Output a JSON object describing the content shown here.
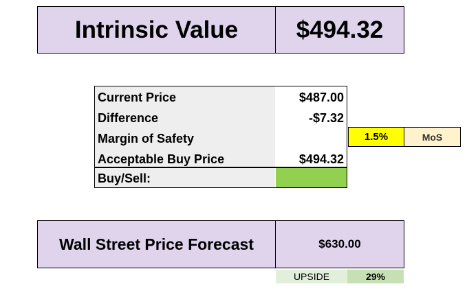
{
  "intrinsic": {
    "label": "Intrinsic Value",
    "value": "$494.32"
  },
  "table": {
    "rows": [
      {
        "label": "Current Price",
        "value": "$487.00"
      },
      {
        "label": "Difference",
        "value": "-$7.32"
      },
      {
        "label": "Margin of Safety",
        "value": ""
      },
      {
        "label": "Acceptable Buy Price",
        "value": "$494.32"
      },
      {
        "label": "Buy/Sell:",
        "value": ""
      }
    ],
    "mos_percent": "1.5%",
    "mos_tag": "MoS"
  },
  "forecast": {
    "label": "Wall Street Price Forecast",
    "value": "$630.00"
  },
  "upside": {
    "label": "UPSIDE",
    "value": "29%"
  },
  "colors": {
    "header_bg": "#e0d3ec",
    "buy_signal": "#92d050",
    "mos_highlight": "#ffff00",
    "mos_tag_bg": "#fff2cc"
  }
}
